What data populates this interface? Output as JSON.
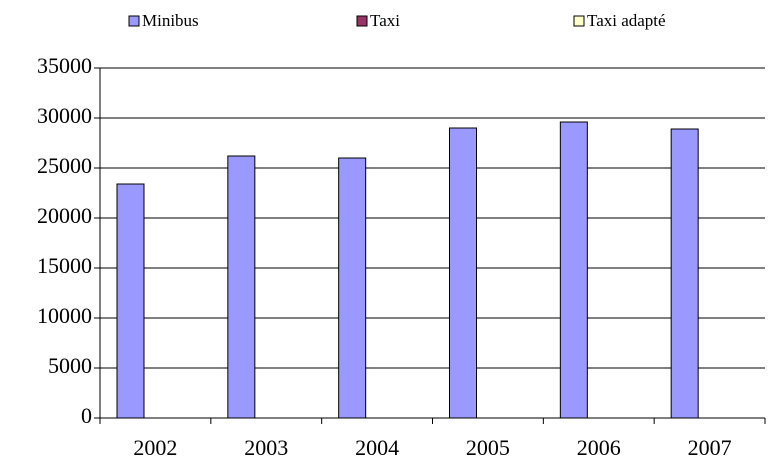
{
  "chart_data": {
    "type": "bar",
    "categories": [
      "2002",
      "2003",
      "2004",
      "2005",
      "2006",
      "2007"
    ],
    "series": [
      {
        "name": "Minibus",
        "color": "#9999ff",
        "values": [
          23400,
          26200,
          26000,
          29000,
          29600,
          28900
        ]
      },
      {
        "name": "Taxi",
        "color": "#993366",
        "values": [
          null,
          null,
          null,
          null,
          null,
          null
        ]
      },
      {
        "name": "Taxi adapté",
        "color": "#ffffcc",
        "values": [
          null,
          null,
          null,
          null,
          null,
          null
        ]
      }
    ],
    "ylim": [
      0,
      35000
    ],
    "yticks": [
      0,
      5000,
      10000,
      15000,
      20000,
      25000,
      30000,
      35000
    ],
    "grid": true,
    "legend": "top"
  }
}
